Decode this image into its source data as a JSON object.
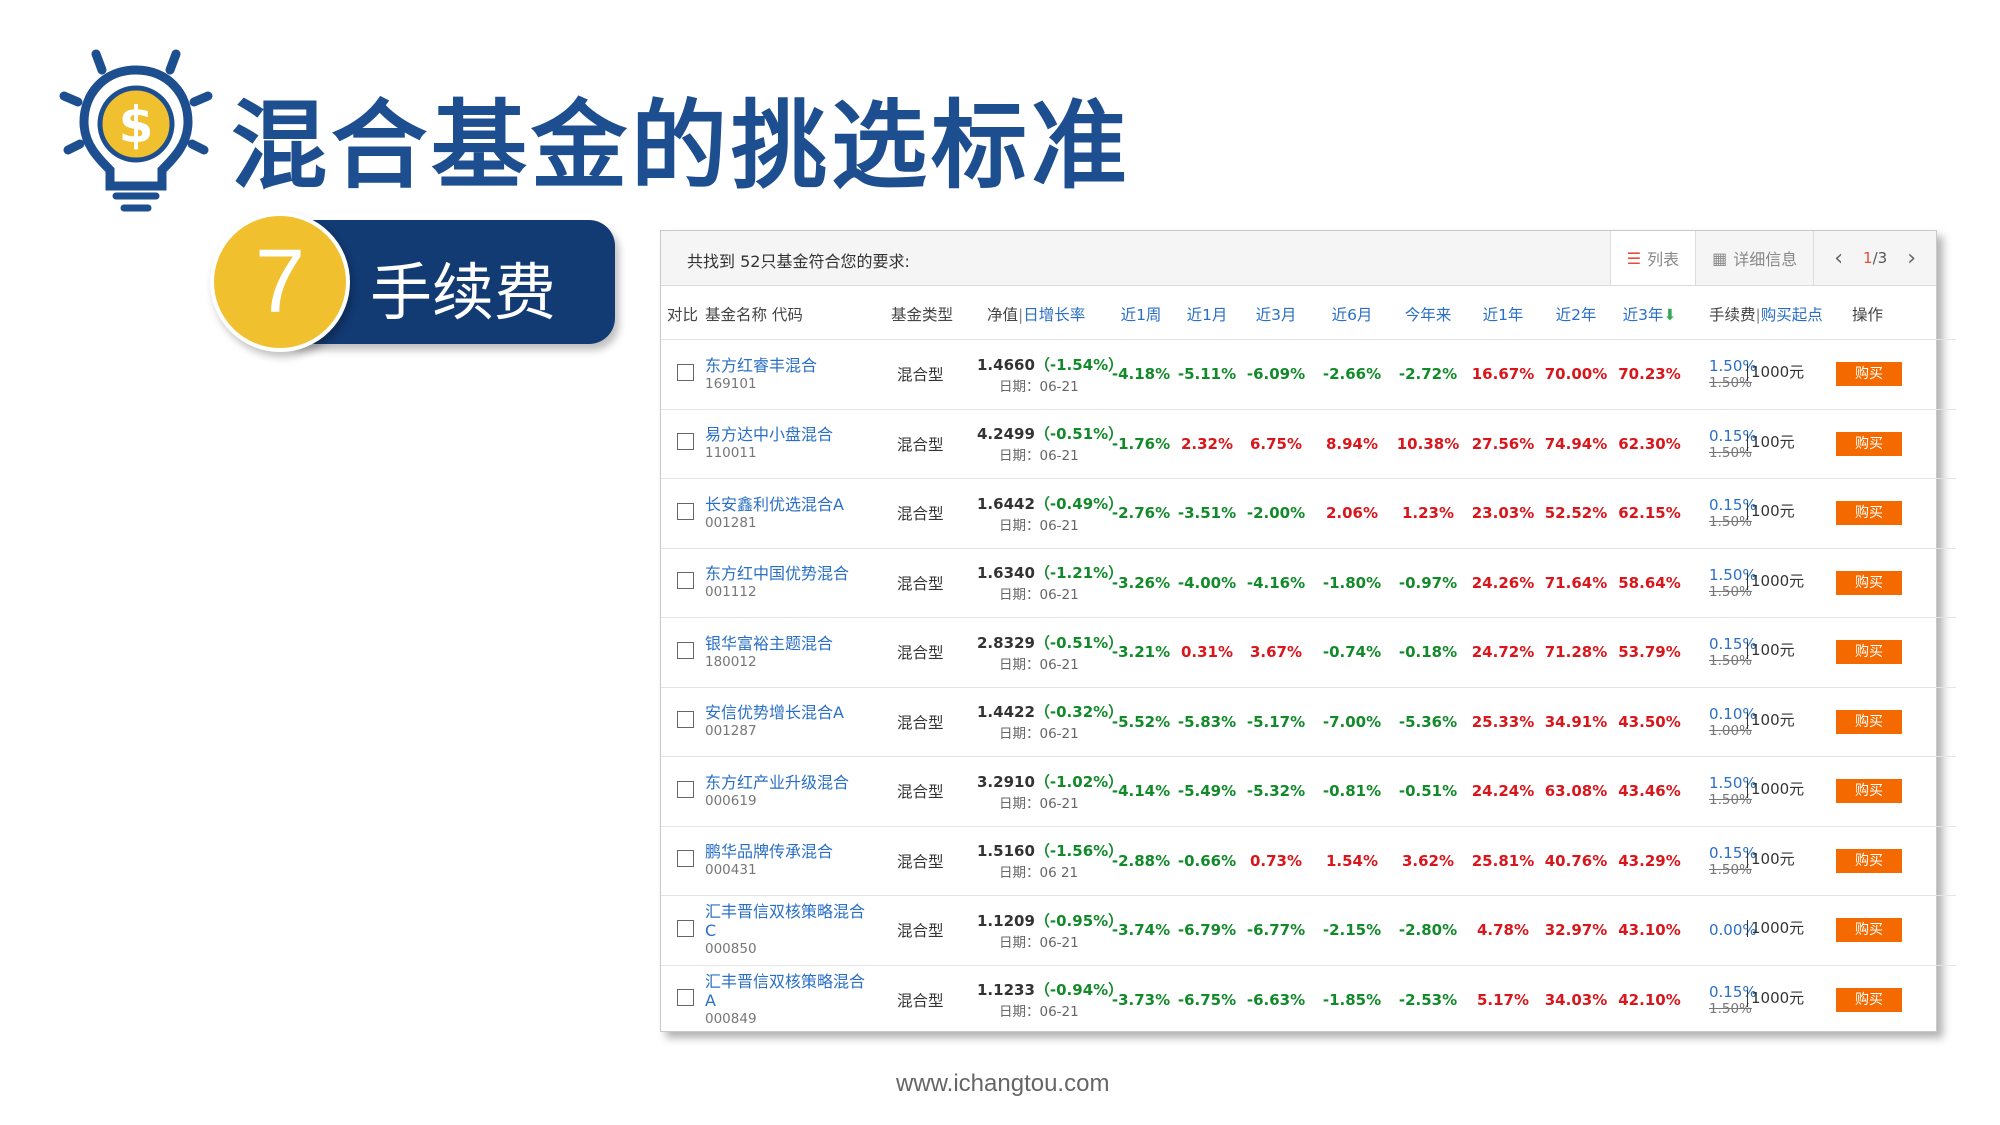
{
  "page_title": "混合基金的挑选标准",
  "step": {
    "number": "7",
    "label": "手续费"
  },
  "panel": {
    "found_text": "共找到 52只基金符合您的要求:",
    "tab_list": "列表",
    "tab_detail": "详细信息",
    "pager_current": "1",
    "pager_total": "/3"
  },
  "headers": {
    "compare": "对比",
    "name_code": "基金名称 代码",
    "type": "基金类型",
    "nav": "净值",
    "daily": "日增长率",
    "w1": "近1周",
    "m1": "近1月",
    "m3": "近3月",
    "m6": "近6月",
    "ytd": "今年来",
    "y1": "近1年",
    "y2": "近2年",
    "y3": "近3年",
    "fee": "手续费",
    "minbuy": "购买起点",
    "op": "操作"
  },
  "rows": [
    {
      "name": "东方红睿丰混合",
      "code": "169101",
      "type": "混合型",
      "nav": "1.4660",
      "chg": "（-1.54%）",
      "date": "日期：06-21",
      "w1": "-4.18%",
      "m1": "-5.11%",
      "m3": "-6.09%",
      "m6": "-2.66%",
      "ytd": "-2.72%",
      "y1": "16.67%",
      "y2": "70.00%",
      "y3": "70.23%",
      "fee": "1.50%",
      "fee_old": "1.50%",
      "minbuy": "1000元",
      "buy": "购买"
    },
    {
      "name": "易方达中小盘混合",
      "code": "110011",
      "type": "混合型",
      "nav": "4.2499",
      "chg": "（-0.51%）",
      "date": "日期：06-21",
      "w1": "-1.76%",
      "m1": "2.32%",
      "m3": "6.75%",
      "m6": "8.94%",
      "ytd": "10.38%",
      "y1": "27.56%",
      "y2": "74.94%",
      "y3": "62.30%",
      "fee": "0.15%",
      "fee_old": "1.50%",
      "minbuy": "100元",
      "buy": "购买"
    },
    {
      "name": "长安鑫利优选混合A",
      "code": "001281",
      "type": "混合型",
      "nav": "1.6442",
      "chg": "（-0.49%）",
      "date": "日期：06-21",
      "w1": "-2.76%",
      "m1": "-3.51%",
      "m3": "-2.00%",
      "m6": "2.06%",
      "ytd": "1.23%",
      "y1": "23.03%",
      "y2": "52.52%",
      "y3": "62.15%",
      "fee": "0.15%",
      "fee_old": "1.50%",
      "minbuy": "100元",
      "buy": "购买"
    },
    {
      "name": "东方红中国优势混合",
      "code": "001112",
      "type": "混合型",
      "nav": "1.6340",
      "chg": "（-1.21%）",
      "date": "日期：06-21",
      "w1": "-3.26%",
      "m1": "-4.00%",
      "m3": "-4.16%",
      "m6": "-1.80%",
      "ytd": "-0.97%",
      "y1": "24.26%",
      "y2": "71.64%",
      "y3": "58.64%",
      "fee": "1.50%",
      "fee_old": "1.50%",
      "minbuy": "1000元",
      "buy": "购买"
    },
    {
      "name": "银华富裕主题混合",
      "code": "180012",
      "type": "混合型",
      "nav": "2.8329",
      "chg": "（-0.51%）",
      "date": "日期：06-21",
      "w1": "-3.21%",
      "m1": "0.31%",
      "m3": "3.67%",
      "m6": "-0.74%",
      "ytd": "-0.18%",
      "y1": "24.72%",
      "y2": "71.28%",
      "y3": "53.79%",
      "fee": "0.15%",
      "fee_old": "1.50%",
      "minbuy": "100元",
      "buy": "购买"
    },
    {
      "name": "安信优势增长混合A",
      "code": "001287",
      "type": "混合型",
      "nav": "1.4422",
      "chg": "（-0.32%）",
      "date": "日期：06-21",
      "w1": "-5.52%",
      "m1": "-5.83%",
      "m3": "-5.17%",
      "m6": "-7.00%",
      "ytd": "-5.36%",
      "y1": "25.33%",
      "y2": "34.91%",
      "y3": "43.50%",
      "fee": "0.10%",
      "fee_old": "1.00%",
      "minbuy": "100元",
      "buy": "购买"
    },
    {
      "name": "东方红产业升级混合",
      "code": "000619",
      "type": "混合型",
      "nav": "3.2910",
      "chg": "（-1.02%）",
      "date": "日期：06-21",
      "w1": "-4.14%",
      "m1": "-5.49%",
      "m3": "-5.32%",
      "m6": "-0.81%",
      "ytd": "-0.51%",
      "y1": "24.24%",
      "y2": "63.08%",
      "y3": "43.46%",
      "fee": "1.50%",
      "fee_old": "1.50%",
      "minbuy": "1000元",
      "buy": "购买"
    },
    {
      "name": "鹏华品牌传承混合",
      "code": "000431",
      "type": "混合型",
      "nav": "1.5160",
      "chg": "（-1.56%）",
      "date": "日期：06 21",
      "w1": "-2.88%",
      "m1": "-0.66%",
      "m3": "0.73%",
      "m6": "1.54%",
      "ytd": "3.62%",
      "y1": "25.81%",
      "y2": "40.76%",
      "y3": "43.29%",
      "fee": "0.15%",
      "fee_old": "1.50%",
      "minbuy": "100元",
      "buy": "购买"
    },
    {
      "name": "汇丰晋信双核策略混合C",
      "code": "000850",
      "type": "混合型",
      "nav": "1.1209",
      "chg": "（-0.95%）",
      "date": "日期：06-21",
      "w1": "-3.74%",
      "m1": "-6.79%",
      "m3": "-6.77%",
      "m6": "-2.15%",
      "ytd": "-2.80%",
      "y1": "4.78%",
      "y2": "32.97%",
      "y3": "43.10%",
      "fee": "0.00%",
      "fee_old": "",
      "minbuy": "1000元",
      "buy": "购买"
    },
    {
      "name": "汇丰晋信双核策略混合A",
      "code": "000849",
      "type": "混合型",
      "nav": "1.1233",
      "chg": "（-0.94%）",
      "date": "日期：06-21",
      "w1": "-3.73%",
      "m1": "-6.75%",
      "m3": "-6.63%",
      "m6": "-1.85%",
      "ytd": "-2.53%",
      "y1": "5.17%",
      "y2": "34.03%",
      "y3": "42.10%",
      "fee": "0.15%",
      "fee_old": "1.50%",
      "minbuy": "1000元",
      "buy": "购买"
    }
  ],
  "footer": "www.ichangtou.com",
  "colors": {
    "title": "#1d4e8f",
    "step_bar": "#123a73",
    "step_circle": "#f0c02f",
    "link": "#2a6fc7",
    "positive": "#d9161b",
    "negative": "#138a2a",
    "buy_button": "#f56a00"
  },
  "icons": {
    "bulb": "lightbulb-dollar-icon",
    "list": "list-icon",
    "grid": "grid-icon",
    "sort": "sort-down-icon",
    "prev": "chevron-left-icon",
    "next": "chevron-right-icon"
  }
}
